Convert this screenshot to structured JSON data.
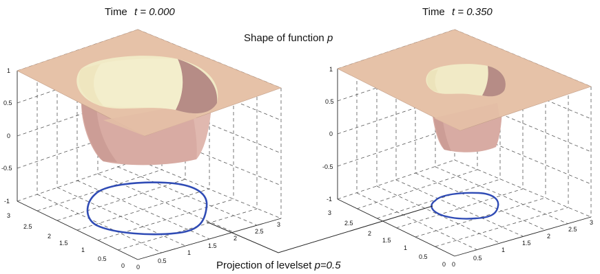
{
  "left_title": {
    "prefix": "Time",
    "var": "t = 0.000"
  },
  "right_title": {
    "prefix": "Time",
    "var": "t = 0.350"
  },
  "caption_top": {
    "text": "Shape of function ",
    "var": "p"
  },
  "caption_bottom": {
    "text": "Projection of levelset ",
    "var": "p=0.5"
  },
  "z_ticks": [
    "1",
    "0.5",
    "0",
    "-0.5",
    "-1"
  ],
  "y_ticks": [
    "3",
    "2.5",
    "2",
    "1.5",
    "1",
    "0.5",
    "0"
  ],
  "x_ticks": [
    "0",
    "0.5",
    "1",
    "1.5",
    "2",
    "2.5",
    "3"
  ],
  "colors": {
    "surface_top": "#e6c2a8",
    "surface_edge": "#b78f7a",
    "bowl_light": "#f1eac6",
    "bowl_shadow": "#b68c86",
    "tube": "#d8aba3",
    "levelset": "#2f4bb5",
    "grid": "#555555"
  },
  "icons": [
    "levelset-curve",
    "pointer-line"
  ]
}
